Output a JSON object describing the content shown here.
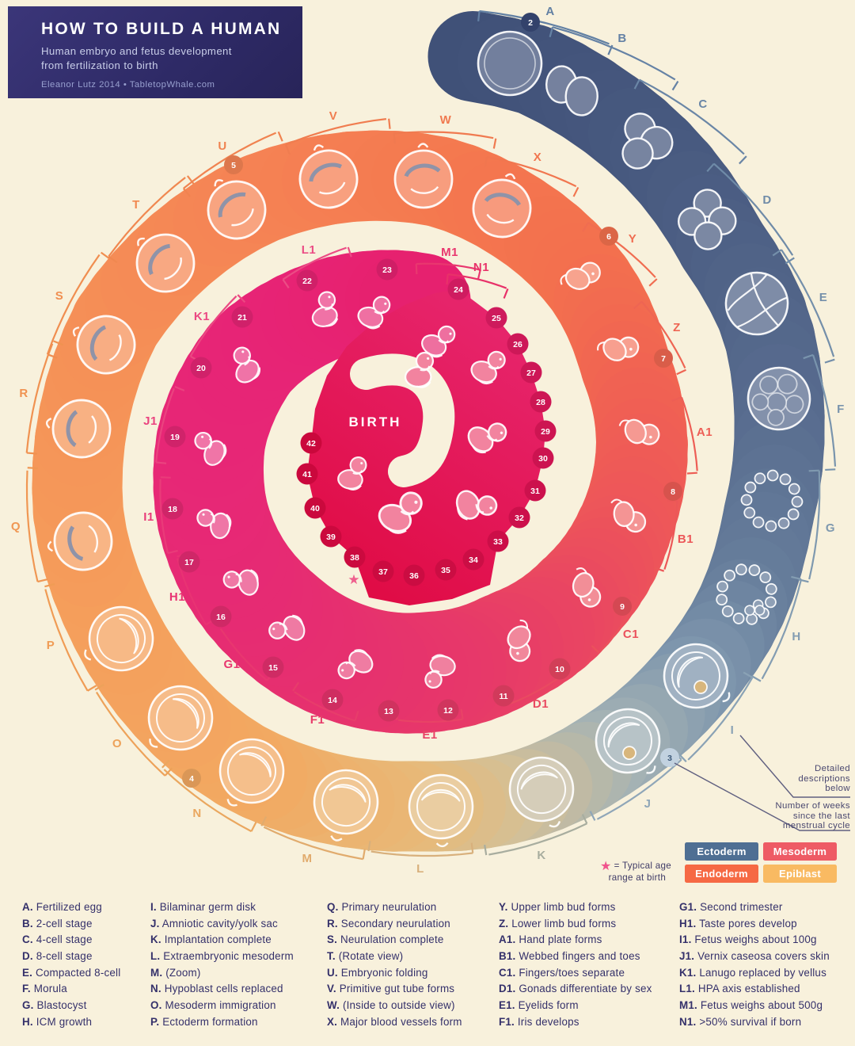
{
  "header": {
    "title": "HOW TO BUILD A HUMAN",
    "subtitle1": "Human embryo and fetus development",
    "subtitle2": "from fertilization to birth",
    "credit": "Eleanor Lutz 2014 • TabletopWhale.com"
  },
  "diagram": {
    "center_label": "BIRTH",
    "weeks": [
      2,
      3,
      4,
      5,
      6,
      7,
      8,
      9,
      10,
      11,
      12,
      13,
      14,
      15,
      16,
      17,
      18,
      19,
      20,
      21,
      22,
      23,
      24,
      25,
      26,
      27,
      28,
      29,
      30,
      31,
      32,
      33,
      34,
      35,
      36,
      37,
      38,
      39,
      40,
      41,
      42
    ],
    "stages": [
      {
        "key": "A",
        "label": "Fertilized egg"
      },
      {
        "key": "B",
        "label": "2-cell stage"
      },
      {
        "key": "C",
        "label": "4-cell stage"
      },
      {
        "key": "D",
        "label": "8-cell stage"
      },
      {
        "key": "E",
        "label": "Compacted 8-cell"
      },
      {
        "key": "F",
        "label": "Morula"
      },
      {
        "key": "G",
        "label": "Blastocyst"
      },
      {
        "key": "H",
        "label": "ICM growth"
      },
      {
        "key": "I",
        "label": "Bilaminar germ disk"
      },
      {
        "key": "J",
        "label": "Amniotic cavity/yolk sac"
      },
      {
        "key": "K",
        "label": "Implantation complete"
      },
      {
        "key": "L",
        "label": "Extraembryonic mesoderm"
      },
      {
        "key": "M",
        "label": "(Zoom)"
      },
      {
        "key": "N",
        "label": "Hypoblast cells replaced"
      },
      {
        "key": "O",
        "label": "Mesoderm immigration"
      },
      {
        "key": "P",
        "label": "Ectoderm formation"
      },
      {
        "key": "Q",
        "label": "Primary neurulation"
      },
      {
        "key": "R",
        "label": "Secondary neurulation"
      },
      {
        "key": "S",
        "label": "Neurulation complete"
      },
      {
        "key": "T",
        "label": "(Rotate view)"
      },
      {
        "key": "U",
        "label": "Embryonic folding"
      },
      {
        "key": "V",
        "label": "Primitive gut tube forms"
      },
      {
        "key": "W",
        "label": "(Inside to outside view)"
      },
      {
        "key": "X",
        "label": "Major blood vessels form"
      },
      {
        "key": "Y",
        "label": "Upper limb bud forms"
      },
      {
        "key": "Z",
        "label": "Lower limb bud forms"
      },
      {
        "key": "A1",
        "label": "Hand plate forms"
      },
      {
        "key": "B1",
        "label": "Webbed fingers and toes"
      },
      {
        "key": "C1",
        "label": "Fingers/toes separate"
      },
      {
        "key": "D1",
        "label": "Gonads differentiate by sex"
      },
      {
        "key": "E1",
        "label": "Eyelids form"
      },
      {
        "key": "F1",
        "label": "Iris develops"
      },
      {
        "key": "G1",
        "label": "Second trimester"
      },
      {
        "key": "H1",
        "label": "Taste pores develop"
      },
      {
        "key": "I1",
        "label": "Fetus weighs about 100g"
      },
      {
        "key": "J1",
        "label": "Vernix caseosa covers skin"
      },
      {
        "key": "K1",
        "label": "Lanugo replaced by vellus"
      },
      {
        "key": "L1",
        "label": "HPA axis established"
      },
      {
        "key": "M1",
        "label": "Fetus weighs about 500g"
      },
      {
        "key": "N1",
        "label": ">50% survival if born"
      }
    ],
    "annotations": {
      "detailed": [
        "Detailed",
        "descriptions",
        "below"
      ],
      "weeks_note": [
        "Number of weeks",
        "since the last",
        "menstrual cycle"
      ],
      "star_symbol": "★",
      "star_note": [
        "= Typical age",
        "range at birth"
      ]
    },
    "legend": [
      {
        "label": "Ectoderm",
        "color": "#4f6f93"
      },
      {
        "label": "Mesoderm",
        "color": "#ee5b65"
      },
      {
        "label": "Endoderm",
        "color": "#f66944"
      },
      {
        "label": "Epiblast",
        "color": "#f9ba62"
      }
    ]
  }
}
